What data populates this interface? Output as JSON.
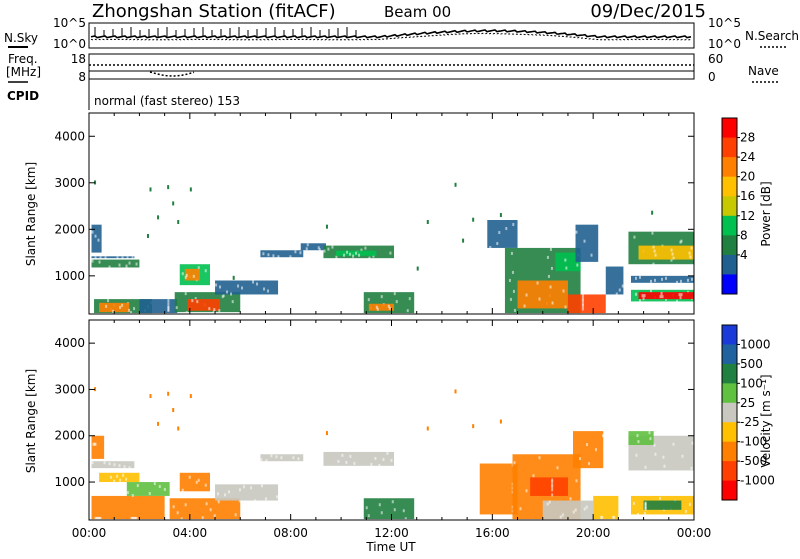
{
  "header": {
    "title": "Zhongshan Station (fitACF)",
    "beam": "Beam 00",
    "date": "09/Dec/2015"
  },
  "top_panels": {
    "nsky_label": "N.Sky",
    "nsearch_label": "N.Search",
    "nsky_ticks": [
      "10^5",
      "10^0"
    ],
    "nsearch_ticks": [
      "10^5",
      "10^0"
    ],
    "freq_label": "Freq.",
    "freq_unit": "[MHz]",
    "freq_ticks": [
      "18",
      "8"
    ],
    "nave_label": "Nave",
    "nave_ticks": [
      "60",
      "0"
    ],
    "cpid_label": "CPID",
    "cpid_text": "normal (fast stereo) 153"
  },
  "chart_data": [
    {
      "type": "heatmap",
      "name": "power",
      "ylabel": "Slant Range [km]",
      "xlabel": "Time UT",
      "y_ticks": [
        "4000",
        "3000",
        "2000",
        "1000"
      ],
      "x_ticks": [
        "00:00",
        "04:00",
        "08:00",
        "12:00",
        "16:00",
        "20:00",
        "00:00"
      ],
      "xlim": [
        0,
        24
      ],
      "ylim": [
        180,
        4500
      ],
      "colorbar": {
        "label": "Power [dB]",
        "ticks": [
          "28",
          "24",
          "20",
          "16",
          "12",
          "8",
          "4"
        ],
        "colors": [
          "#ff0000",
          "#ff4000",
          "#ff8000",
          "#ffc000",
          "#c8c800",
          "#00c050",
          "#208040",
          "#206090",
          "#0000ff"
        ]
      },
      "blobs": [
        {
          "t0": 0.1,
          "t1": 2.0,
          "r0": 1180,
          "r1": 1350,
          "color": "#208040"
        },
        {
          "t0": 0.1,
          "t1": 1.8,
          "r0": 1380,
          "r1": 1420,
          "color": "#206090"
        },
        {
          "t0": 0.1,
          "t1": 0.5,
          "r0": 1500,
          "r1": 2100,
          "color": "#206090"
        },
        {
          "t0": 0.2,
          "t1": 2.5,
          "r0": 200,
          "r1": 500,
          "color": "#208040"
        },
        {
          "t0": 0.4,
          "t1": 1.6,
          "r0": 220,
          "r1": 420,
          "color": "#ff8000"
        },
        {
          "t0": 2.0,
          "t1": 3.5,
          "r0": 200,
          "r1": 500,
          "color": "#206090"
        },
        {
          "t0": 3.6,
          "t1": 4.8,
          "r0": 800,
          "r1": 1250,
          "color": "#00c050"
        },
        {
          "t0": 3.8,
          "t1": 4.4,
          "r0": 900,
          "r1": 1150,
          "color": "#ff8000"
        },
        {
          "t0": 3.4,
          "t1": 6.0,
          "r0": 220,
          "r1": 650,
          "color": "#208040"
        },
        {
          "t0": 3.9,
          "t1": 5.2,
          "r0": 250,
          "r1": 500,
          "color": "#ff4000"
        },
        {
          "t0": 5.0,
          "t1": 7.5,
          "r0": 600,
          "r1": 900,
          "color": "#206090"
        },
        {
          "t0": 6.8,
          "t1": 8.5,
          "r0": 1400,
          "r1": 1550,
          "color": "#206090"
        },
        {
          "t0": 8.4,
          "t1": 9.4,
          "r0": 1550,
          "r1": 1700,
          "color": "#206090"
        },
        {
          "t0": 9.3,
          "t1": 12.1,
          "r0": 1380,
          "r1": 1650,
          "color": "#208040"
        },
        {
          "t0": 9.8,
          "t1": 11.4,
          "r0": 1430,
          "r1": 1540,
          "color": "#00c050"
        },
        {
          "t0": 10.9,
          "t1": 12.9,
          "r0": 200,
          "r1": 650,
          "color": "#208040"
        },
        {
          "t0": 11.1,
          "t1": 12.1,
          "r0": 250,
          "r1": 400,
          "color": "#ff8000"
        },
        {
          "t0": 15.8,
          "t1": 17.0,
          "r0": 1600,
          "r1": 2200,
          "color": "#206090"
        },
        {
          "t0": 16.5,
          "t1": 19.5,
          "r0": 200,
          "r1": 1600,
          "color": "#208040"
        },
        {
          "t0": 17.0,
          "t1": 19.0,
          "r0": 300,
          "r1": 900,
          "color": "#ff8000"
        },
        {
          "t0": 18.5,
          "t1": 19.5,
          "r0": 1100,
          "r1": 1500,
          "color": "#00c050"
        },
        {
          "t0": 19.0,
          "t1": 20.5,
          "r0": 200,
          "r1": 600,
          "color": "#ff4000"
        },
        {
          "t0": 19.3,
          "t1": 20.2,
          "r0": 1300,
          "r1": 2100,
          "color": "#206090"
        },
        {
          "t0": 20.5,
          "t1": 21.2,
          "r0": 600,
          "r1": 1200,
          "color": "#206090"
        },
        {
          "t0": 21.4,
          "t1": 24.0,
          "r0": 1250,
          "r1": 1950,
          "color": "#208040"
        },
        {
          "t0": 21.8,
          "t1": 24.0,
          "r0": 1350,
          "r1": 1650,
          "color": "#ffc000"
        },
        {
          "t0": 21.5,
          "t1": 24.0,
          "r0": 450,
          "r1": 700,
          "color": "#00c050"
        },
        {
          "t0": 21.8,
          "t1": 24.0,
          "r0": 500,
          "r1": 650,
          "color": "#ff0000"
        },
        {
          "t0": 21.5,
          "t1": 24.0,
          "r0": 850,
          "r1": 1000,
          "color": "#206090"
        }
      ],
      "speckles": [
        {
          "t": 0.2,
          "r": 3050
        },
        {
          "t": 2.4,
          "r": 2900
        },
        {
          "t": 2.7,
          "r": 2300
        },
        {
          "t": 3.1,
          "r": 2950
        },
        {
          "t": 3.3,
          "r": 2600
        },
        {
          "t": 3.5,
          "r": 2200
        },
        {
          "t": 4.0,
          "r": 2900
        },
        {
          "t": 2.3,
          "r": 1900
        },
        {
          "t": 9.4,
          "r": 2100
        },
        {
          "t": 13.4,
          "r": 2200
        },
        {
          "t": 15.2,
          "r": 2250
        },
        {
          "t": 16.3,
          "r": 2350
        },
        {
          "t": 22.3,
          "r": 2400
        },
        {
          "t": 14.5,
          "r": 3000
        },
        {
          "t": 5.7,
          "r": 1000
        },
        {
          "t": 13.0,
          "r": 1200
        },
        {
          "t": 14.8,
          "r": 1800
        }
      ]
    },
    {
      "type": "heatmap",
      "name": "velocity",
      "ylabel": "Slant Range [km]",
      "xlabel": "Time UT",
      "y_ticks": [
        "4000",
        "3000",
        "2000",
        "1000"
      ],
      "x_ticks": [
        "00:00",
        "04:00",
        "08:00",
        "12:00",
        "16:00",
        "20:00",
        "00:00"
      ],
      "xlim": [
        0,
        24
      ],
      "ylim": [
        180,
        4500
      ],
      "colorbar": {
        "label": "Velocity [m s⁻¹]",
        "ticks": [
          "1000",
          "500",
          "100",
          "25",
          "-25",
          "-100",
          "-500",
          "-1000"
        ],
        "colors": [
          "#1a3bd8",
          "#2062a0",
          "#208040",
          "#60c040",
          "#c8c8c0",
          "#ffc000",
          "#ff8000",
          "#ff4000",
          "#ff0000"
        ]
      },
      "blobs": [
        {
          "t0": 0.1,
          "t1": 1.8,
          "r0": 1300,
          "r1": 1450,
          "color": "#c8c8c0"
        },
        {
          "t0": 0.1,
          "t1": 0.6,
          "r0": 1500,
          "r1": 2000,
          "color": "#ff8000"
        },
        {
          "t0": 0.4,
          "t1": 2.0,
          "r0": 1000,
          "r1": 1200,
          "color": "#ffc000"
        },
        {
          "t0": 0.1,
          "t1": 3.0,
          "r0": 200,
          "r1": 700,
          "color": "#ff8000"
        },
        {
          "t0": 1.5,
          "t1": 3.2,
          "r0": 700,
          "r1": 1000,
          "color": "#60c040"
        },
        {
          "t0": 3.2,
          "t1": 6.0,
          "r0": 200,
          "r1": 650,
          "color": "#ff8000"
        },
        {
          "t0": 3.6,
          "t1": 4.8,
          "r0": 800,
          "r1": 1200,
          "color": "#ff8000"
        },
        {
          "t0": 5.0,
          "t1": 7.5,
          "r0": 600,
          "r1": 950,
          "color": "#c8c8c0"
        },
        {
          "t0": 6.8,
          "t1": 8.5,
          "r0": 1450,
          "r1": 1600,
          "color": "#c8c8c0"
        },
        {
          "t0": 9.3,
          "t1": 12.1,
          "r0": 1350,
          "r1": 1650,
          "color": "#c8c8c0"
        },
        {
          "t0": 10.9,
          "t1": 12.9,
          "r0": 200,
          "r1": 650,
          "color": "#208040"
        },
        {
          "t0": 15.5,
          "t1": 17.0,
          "r0": 300,
          "r1": 1400,
          "color": "#ff8000"
        },
        {
          "t0": 16.8,
          "t1": 19.5,
          "r0": 200,
          "r1": 1600,
          "color": "#ff8000"
        },
        {
          "t0": 17.5,
          "t1": 19.0,
          "r0": 700,
          "r1": 1100,
          "color": "#ff4000"
        },
        {
          "t0": 18.0,
          "t1": 20.0,
          "r0": 200,
          "r1": 600,
          "color": "#c8c8c0"
        },
        {
          "t0": 19.2,
          "t1": 20.4,
          "r0": 1300,
          "r1": 2100,
          "color": "#ff8000"
        },
        {
          "t0": 20.0,
          "t1": 21.0,
          "r0": 200,
          "r1": 700,
          "color": "#ffc000"
        },
        {
          "t0": 21.4,
          "t1": 24.0,
          "r0": 1250,
          "r1": 2000,
          "color": "#c8c8c0"
        },
        {
          "t0": 21.4,
          "t1": 22.4,
          "r0": 1800,
          "r1": 2100,
          "color": "#60c040"
        },
        {
          "t0": 21.5,
          "t1": 24.0,
          "r0": 300,
          "r1": 700,
          "color": "#ffc000"
        },
        {
          "t0": 22.0,
          "t1": 23.5,
          "r0": 400,
          "r1": 600,
          "color": "#208040"
        }
      ],
      "speckles": [
        {
          "t": 0.2,
          "r": 3050
        },
        {
          "t": 2.4,
          "r": 2900
        },
        {
          "t": 2.7,
          "r": 2300
        },
        {
          "t": 3.1,
          "r": 2950
        },
        {
          "t": 3.3,
          "r": 2600
        },
        {
          "t": 3.5,
          "r": 2200
        },
        {
          "t": 4.0,
          "r": 2900
        },
        {
          "t": 9.4,
          "r": 2100
        },
        {
          "t": 13.4,
          "r": 2200
        },
        {
          "t": 15.2,
          "r": 2250
        },
        {
          "t": 16.3,
          "r": 2350
        },
        {
          "t": 14.5,
          "r": 3000
        }
      ]
    }
  ]
}
